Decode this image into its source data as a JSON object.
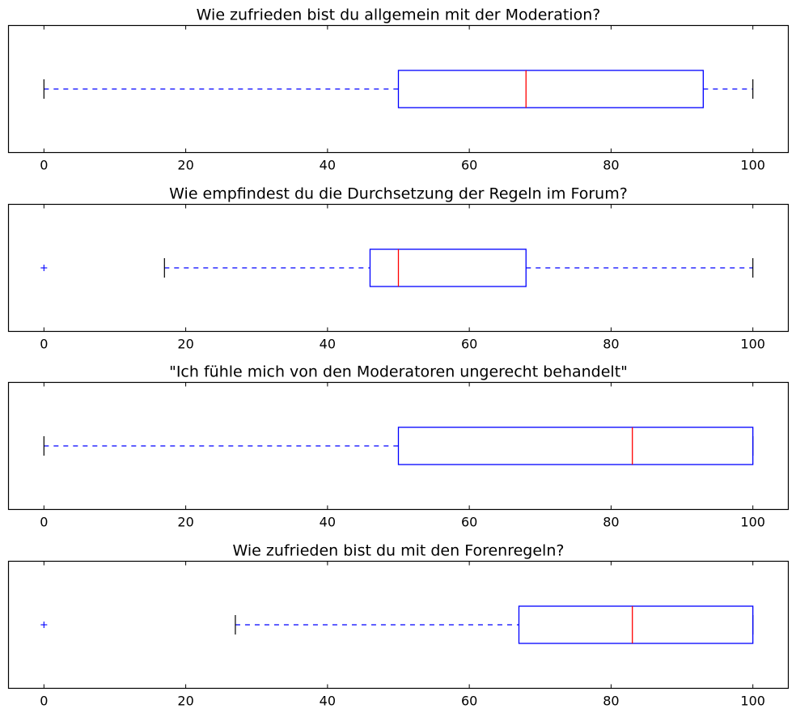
{
  "chart_data": [
    {
      "type": "boxplot",
      "orientation": "horizontal",
      "title": "Wie zufrieden bist du allgemein mit der Moderation?",
      "xlim": [
        -5,
        105
      ],
      "xticks": [
        0,
        20,
        40,
        60,
        80,
        100
      ],
      "xtick_labels": [
        "0",
        "20",
        "40",
        "60",
        "80",
        "100"
      ],
      "box": {
        "whisker_low": 0,
        "q1": 50,
        "median": 68,
        "q3": 93,
        "whisker_high": 100,
        "outliers": []
      }
    },
    {
      "type": "boxplot",
      "orientation": "horizontal",
      "title": "Wie empfindest du die Durchsetzung der Regeln im Forum?",
      "xlim": [
        -5,
        105
      ],
      "xticks": [
        0,
        20,
        40,
        60,
        80,
        100
      ],
      "xtick_labels": [
        "0",
        "20",
        "40",
        "60",
        "80",
        "100"
      ],
      "box": {
        "whisker_low": 17,
        "q1": 46,
        "median": 50,
        "q3": 68,
        "whisker_high": 100,
        "outliers": [
          0
        ]
      }
    },
    {
      "type": "boxplot",
      "orientation": "horizontal",
      "title": "\"Ich fühle mich von den Moderatoren ungerecht behandelt\"",
      "xlim": [
        -5,
        105
      ],
      "xticks": [
        0,
        20,
        40,
        60,
        80,
        100
      ],
      "xtick_labels": [
        "0",
        "20",
        "40",
        "60",
        "80",
        "100"
      ],
      "box": {
        "whisker_low": 0,
        "q1": 50,
        "median": 83,
        "q3": 100,
        "whisker_high": 100,
        "outliers": []
      }
    },
    {
      "type": "boxplot",
      "orientation": "horizontal",
      "title": "Wie zufrieden bist du mit den Forenregeln?",
      "xlim": [
        -5,
        105
      ],
      "xticks": [
        0,
        20,
        40,
        60,
        80,
        100
      ],
      "xtick_labels": [
        "0",
        "20",
        "40",
        "60",
        "80",
        "100"
      ],
      "box": {
        "whisker_low": 27,
        "q1": 67,
        "median": 83,
        "q3": 100,
        "whisker_high": 100,
        "outliers": [
          0
        ]
      }
    }
  ],
  "colors": {
    "box": "#0000ff",
    "whisker": "#0000ff",
    "cap": "#000000",
    "median": "#ff0000",
    "outlier": "#0000ff",
    "axes": "#000000"
  }
}
